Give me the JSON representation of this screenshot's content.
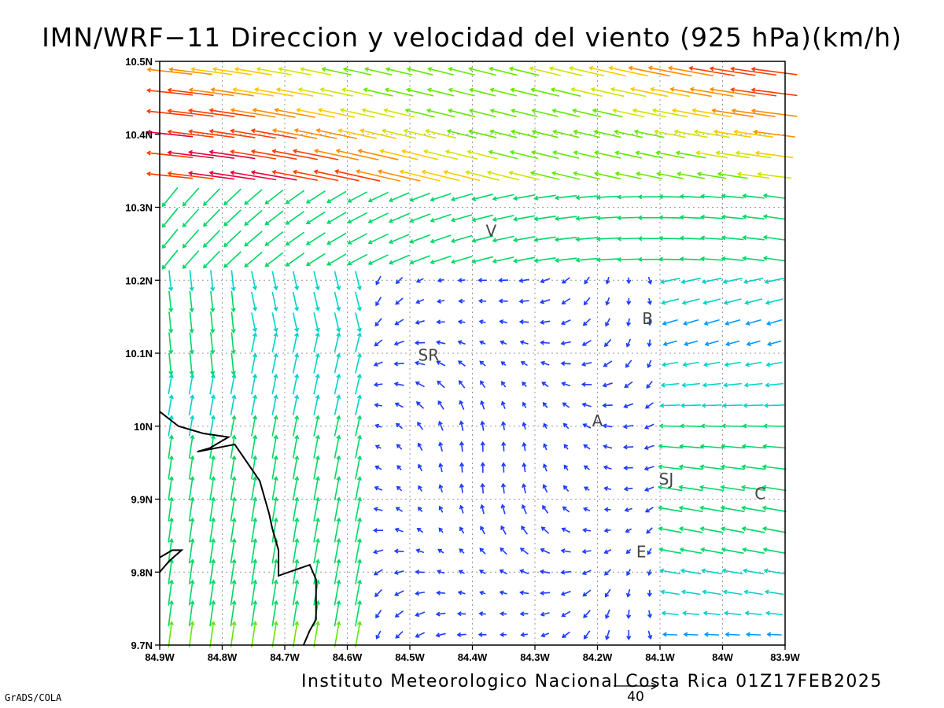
{
  "title": "IMN/WRF−11 Direccion y velocidad del viento (925 hPa)(km/h)",
  "credit": "Instituto Meteorologico Nacional Costa Rica 01Z17FEB2025",
  "software": "GrADS/COLA",
  "reference_vector": {
    "value": 40,
    "label": "40"
  },
  "map": {
    "lon_range": [
      -84.9,
      -83.9
    ],
    "lat_range": [
      9.7,
      10.5
    ],
    "x_ticks": [
      "84.9W",
      "84.8W",
      "84.7W",
      "84.6W",
      "84.5W",
      "84.4W",
      "84.3W",
      "84.2W",
      "84.1W",
      "84W",
      "83.9W"
    ],
    "y_ticks": [
      "9.7N",
      "9.8N",
      "9.9N",
      "10N",
      "10.1N",
      "10.2N",
      "10.3N",
      "10.4N",
      "10.5N"
    ],
    "grid": "dotted",
    "city_labels": [
      {
        "label": "V",
        "lon": -84.37,
        "lat": 10.26
      },
      {
        "label": "B",
        "lon": -84.12,
        "lat": 10.14
      },
      {
        "label": "SR",
        "lon": -84.47,
        "lat": 10.09
      },
      {
        "label": "A",
        "lon": -84.2,
        "lat": 10.0
      },
      {
        "label": "SJ",
        "lon": -84.09,
        "lat": 9.92
      },
      {
        "label": "C",
        "lon": -83.94,
        "lat": 9.9
      },
      {
        "label": "E",
        "lon": -84.13,
        "lat": 9.82
      }
    ],
    "coastline_lonlat": [
      [
        -84.9,
        10.02
      ],
      [
        -84.87,
        10.0
      ],
      [
        -84.83,
        9.99
      ],
      [
        -84.79,
        9.985
      ],
      [
        -84.82,
        9.97
      ],
      [
        -84.84,
        9.965
      ],
      [
        -84.78,
        9.975
      ],
      [
        -84.76,
        9.95
      ],
      [
        -84.74,
        9.925
      ],
      [
        -84.725,
        9.88
      ],
      [
        -84.72,
        9.86
      ],
      [
        -84.71,
        9.83
      ],
      [
        -84.71,
        9.795
      ],
      [
        -84.66,
        9.81
      ],
      [
        -84.65,
        9.79
      ],
      [
        -84.65,
        9.735
      ],
      [
        -84.66,
        9.72
      ],
      [
        -84.67,
        9.7
      ]
    ],
    "peninsula_lonlat": [
      [
        -84.9,
        9.8
      ],
      [
        -84.885,
        9.815
      ],
      [
        -84.865,
        9.83
      ],
      [
        -84.88,
        9.83
      ],
      [
        -84.9,
        9.82
      ]
    ],
    "speed_colors": [
      "#8a00e0",
      "#1e3cff",
      "#0096ff",
      "#00d2c8",
      "#00d864",
      "#64e800",
      "#d2e400",
      "#ffc800",
      "#ff8c00",
      "#ff3c00",
      "#e6003c"
    ],
    "wind_regime": "Easterly trade winds, strongest (~40-50 km/h) in the northern third; weak and variable over the central valley; northerly-to-northeasterly flow along the western edge."
  }
}
